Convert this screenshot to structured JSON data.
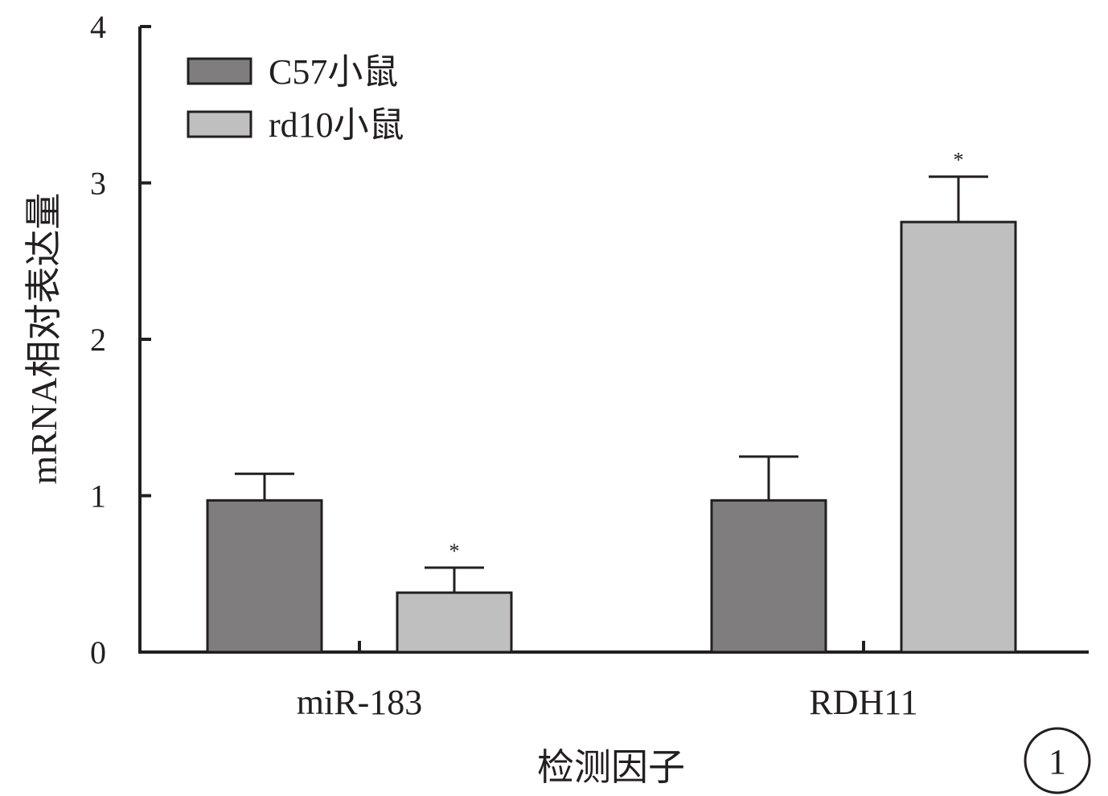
{
  "chart_data": {
    "type": "bar",
    "categories": [
      "miR-183",
      "RDH11"
    ],
    "series": [
      {
        "name": "C57小鼠",
        "color": "#7f7d7e",
        "values": [
          0.97,
          0.97
        ],
        "errors": [
          0.17,
          0.28
        ],
        "significance": [
          "",
          ""
        ]
      },
      {
        "name": "rd10小鼠",
        "color": "#bfbfbf",
        "values": [
          0.38,
          2.75
        ],
        "errors": [
          0.16,
          0.29
        ],
        "significance": [
          "*",
          "*"
        ]
      }
    ],
    "xlabel": "检测因子",
    "ylabel": "mRNA相对表达量",
    "ylim": [
      0,
      4
    ],
    "yticks": [
      "0",
      "1",
      "2",
      "3",
      "4"
    ],
    "grid": false,
    "legend_position": "top-left"
  },
  "panel_label": "1"
}
